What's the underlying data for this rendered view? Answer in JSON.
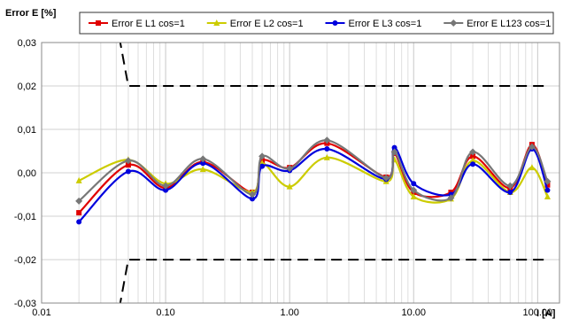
{
  "chart_data": {
    "type": "line",
    "ylabel": "Error E [%]",
    "xlabel": "I [A]",
    "x_scale": "log",
    "xlim": [
      0.01,
      150
    ],
    "ylim": [
      -0.03,
      0.03
    ],
    "grid": "on",
    "legend_position": "top",
    "x_tick_values": [
      0.01,
      0.1,
      1,
      10,
      100
    ],
    "x_tick_labels": [
      "0.01",
      "0.10",
      "1.00",
      "10.00",
      "100.00"
    ],
    "y_tick_values": [
      0.03,
      0.02,
      0.01,
      0.0,
      -0.01,
      -0.02,
      -0.03
    ],
    "y_tick_labels": [
      "0,03",
      "0,02",
      "0,01",
      "0,00",
      "-0,01",
      "-0,02",
      "-0,03"
    ],
    "x": [
      0.02,
      0.05,
      0.1,
      0.2,
      0.5,
      0.6,
      1,
      2,
      6,
      7,
      10,
      20,
      30,
      60,
      90,
      120
    ],
    "series": [
      {
        "name": "Error E L1 cos=1",
        "color": "#e00000",
        "marker": "square",
        "values": [
          -0.0092,
          0.0018,
          -0.0035,
          0.0025,
          -0.0045,
          0.0028,
          0.0012,
          0.0068,
          -0.001,
          0.0045,
          -0.0045,
          -0.0045,
          0.0038,
          -0.0035,
          0.0065,
          -0.0028
        ]
      },
      {
        "name": "Error E L2 cos=1",
        "color": "#cccc00",
        "marker": "triangle",
        "values": [
          -0.0018,
          0.003,
          -0.0025,
          0.0008,
          -0.0045,
          0.0022,
          -0.0032,
          0.0035,
          -0.002,
          0.003,
          -0.0055,
          -0.006,
          0.0028,
          -0.0045,
          0.0012,
          -0.0055
        ]
      },
      {
        "name": "Error E L3 cos=1",
        "color": "#0000dd",
        "marker": "circle",
        "values": [
          -0.0113,
          0.0003,
          -0.004,
          0.0022,
          -0.006,
          0.0015,
          0.0005,
          0.0055,
          -0.0015,
          0.0058,
          -0.0025,
          -0.005,
          0.002,
          -0.0045,
          0.0055,
          -0.004
        ]
      },
      {
        "name": "Error E L123 cos=1",
        "color": "#777777",
        "marker": "diamond",
        "values": [
          -0.0065,
          0.0028,
          -0.003,
          0.0032,
          -0.005,
          0.0038,
          0.001,
          0.0075,
          -0.0012,
          0.0048,
          -0.004,
          -0.0058,
          0.0048,
          -0.003,
          0.006,
          -0.002
        ]
      }
    ],
    "limit_lines": [
      {
        "x": [
          0.04,
          0.05,
          120
        ],
        "values": [
          0.035,
          0.02,
          0.02
        ]
      },
      {
        "x": [
          0.04,
          0.05,
          120
        ],
        "values": [
          -0.035,
          -0.02,
          -0.02
        ]
      }
    ]
  }
}
